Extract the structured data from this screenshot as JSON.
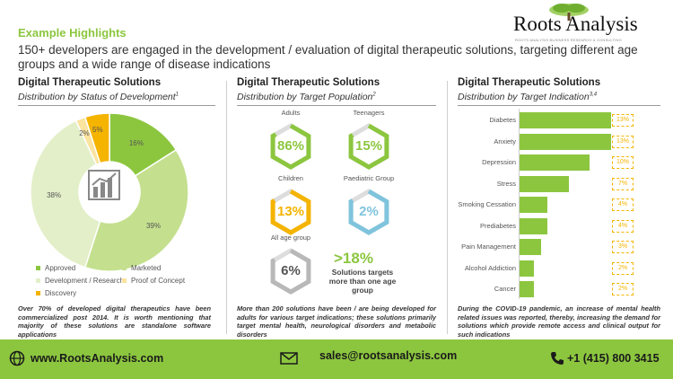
{
  "header": {
    "title": "Example Highlights",
    "subtitle": "150+ developers are engaged in the development / evaluation of digital therapeutic solutions, targeting different age groups and a wide range of disease indications"
  },
  "logo": {
    "text": "Roots Analysis",
    "tagline": "ROOTS ANALYSIS BUSINESS RESEARCH & CONSULTING"
  },
  "panel1": {
    "title": "Digital  Therapeutic Solutions",
    "subtitle": "Distribution by Status of Development",
    "subtitle_ref": "1",
    "note": "Over 70% of developed digital therapeutics have been commercialized post 2014. It is worth mentioning that majority of these solutions are standalone software applications"
  },
  "panel2": {
    "title": "Digital Therapeutic Solutions",
    "subtitle": "Distribution by Target Population",
    "subtitle_ref": "2",
    "big_stat": ">18%",
    "big_stat_text": "Solutions targets more than one age group",
    "note": "More than 200 solutions have been / are being developed for adults for various target indications; these solutions primarily target mental health, neurological disorders and metabolic disorders"
  },
  "panel3": {
    "title": "Digital Therapeutic Solutions",
    "subtitle": "Distribution by Target Indication",
    "subtitle_ref": "3,4",
    "note": "During the COVID-19 pandemic, an increase of mental health related issues was reported, thereby, increasing the demand for solutions which provide remote access and clinical output for such indications"
  },
  "colors": {
    "green": "#8cc63f",
    "light_green": "#c4e08e",
    "pale_green": "#e3efc8",
    "yellow": "#fbe3a0",
    "orange": "#f4b400",
    "blue": "#7fc4dc",
    "grey": "#b8b8b8"
  },
  "footer": {
    "website": "www.RootsAnalysis.com",
    "email": "sales@rootsanalysis.com",
    "phone": "+1 (415) 800 3415"
  },
  "chart_data": [
    {
      "type": "pie",
      "title": "Distribution by Status of Development",
      "series": [
        {
          "name": "Approved",
          "value": 16,
          "label": "16%",
          "color": "#8cc63f"
        },
        {
          "name": "Marketed",
          "value": 39,
          "label": "39%",
          "color": "#c4e08e"
        },
        {
          "name": "Development  / Research",
          "value": 38,
          "label": "38%",
          "color": "#e3efc8"
        },
        {
          "name": "Proof of Concept",
          "value": 2,
          "label": "2%",
          "color": "#fbe3a0"
        },
        {
          "name": "Discovery",
          "value": 5,
          "label": "5%",
          "color": "#f4b400"
        }
      ]
    },
    {
      "type": "table",
      "title": "Distribution by Target Population",
      "items": [
        {
          "name": "Adults",
          "value": 86,
          "label": "86%",
          "color": "#8cc63f"
        },
        {
          "name": "Teenagers",
          "value": 15,
          "label": "15%",
          "color": "#8cc63f"
        },
        {
          "name": "Children",
          "value": 13,
          "label": "13%",
          "color": "#f4b400"
        },
        {
          "name": "Paediatric Group",
          "value": 2,
          "label": "2%",
          "color": "#7fc4dc"
        },
        {
          "name": "All age group",
          "value": 6,
          "label": "6%",
          "color": "#b8b8b8"
        }
      ]
    },
    {
      "type": "bar",
      "orientation": "horizontal",
      "title": "Distribution by Target Indication",
      "categories": [
        "Diabetes",
        "Anxiety",
        "Depression",
        "Stress",
        "Smoking Cessation",
        "Prediabetes",
        "Pain Management",
        "Alcohol Addiction",
        "Cancer"
      ],
      "values": [
        13,
        13,
        10,
        7,
        4,
        4,
        3,
        2,
        2
      ],
      "labels": [
        "13%",
        "13%",
        "10%",
        "7%",
        "4%",
        "4%",
        "3%",
        "2%",
        "2%"
      ]
    }
  ]
}
